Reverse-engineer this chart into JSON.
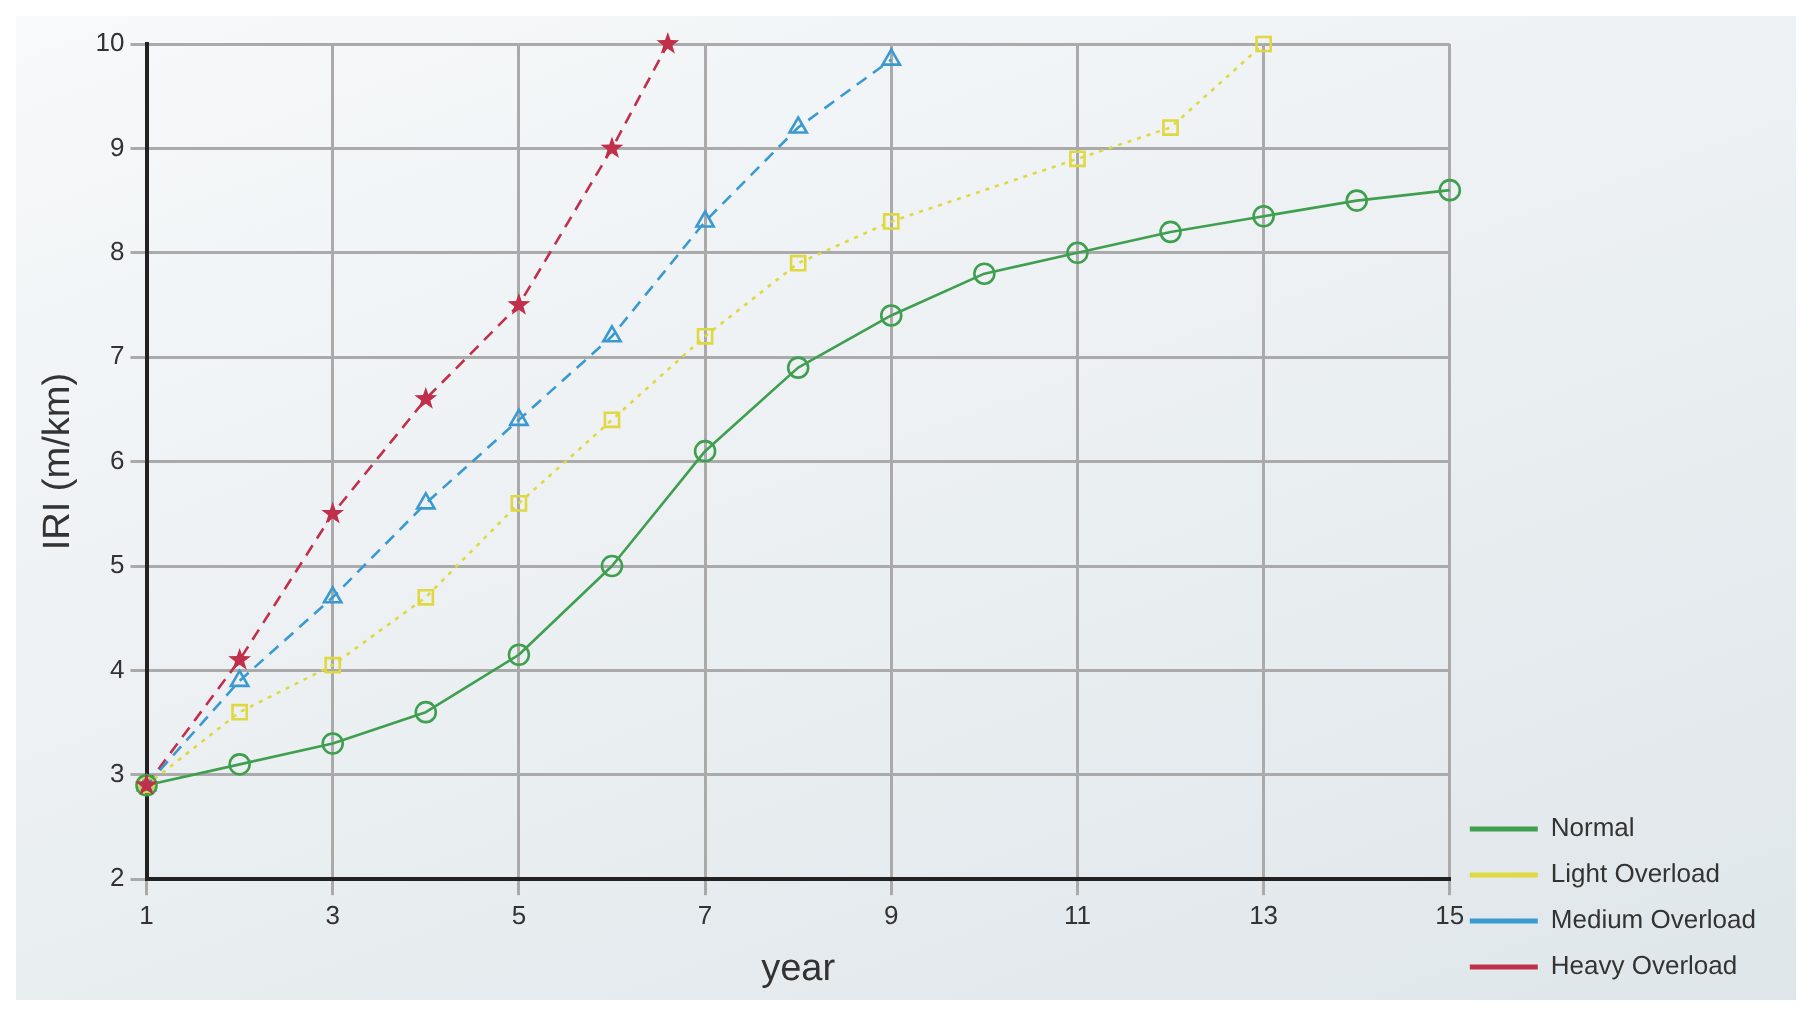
{
  "chart_data": {
    "type": "line",
    "xlabel": "year",
    "ylabel": "IRI (m/km)",
    "xlim": [
      1,
      15
    ],
    "xticks": [
      1,
      3,
      5,
      7,
      9,
      11,
      13,
      15
    ],
    "ylim": [
      2,
      10
    ],
    "yticks": [
      2,
      3,
      4,
      5,
      6,
      7,
      8,
      9,
      10
    ],
    "grid": true,
    "legend": "right",
    "series": [
      {
        "name": "Normal",
        "color": "#3f9f4f",
        "marker": "circle",
        "line_style": "solid",
        "x": [
          1,
          2,
          3,
          4,
          5,
          6,
          7,
          8,
          9,
          10,
          11,
          12,
          13,
          14,
          15
        ],
        "values": [
          2.9,
          3.1,
          3.3,
          3.6,
          4.15,
          5.0,
          6.1,
          6.9,
          7.4,
          7.8,
          8.0,
          8.2,
          8.35,
          8.5,
          8.6
        ]
      },
      {
        "name": "Light Overload",
        "color": "#e0d840",
        "marker": "square",
        "line_style": "dotted",
        "x": [
          1,
          2,
          3,
          4,
          5,
          6,
          7,
          8,
          9,
          11,
          12,
          13
        ],
        "values": [
          2.9,
          3.6,
          4.05,
          4.7,
          5.6,
          6.4,
          7.2,
          7.9,
          8.3,
          8.9,
          9.2,
          10
        ]
      },
      {
        "name": "Medium Overload",
        "color": "#3a9ad0",
        "marker": "triangle",
        "line_style": "dashed",
        "x": [
          1,
          2,
          3,
          4,
          5,
          6,
          7,
          8,
          9
        ],
        "values": [
          2.9,
          3.9,
          4.7,
          5.6,
          6.4,
          7.2,
          8.3,
          9.2,
          9.85
        ]
      },
      {
        "name": "Heavy Overload",
        "color": "#c0304a",
        "marker": "star",
        "line_style": "dashed",
        "x": [
          1,
          2,
          3,
          4,
          5,
          6,
          6.6
        ],
        "values": [
          2.9,
          4.1,
          5.5,
          6.6,
          7.5,
          9.0,
          10
        ]
      }
    ]
  }
}
